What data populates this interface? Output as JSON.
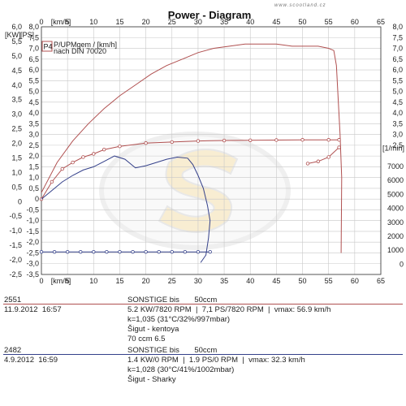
{
  "watermark": "www.scootland.cz",
  "title": "Power - Diagram",
  "axis": {
    "left_units": [
      "[KW]",
      "[PS]"
    ],
    "top_unit": "[km/h]",
    "bottom_unit": "[km/h]",
    "right_unit": "[1/min]",
    "kw_ticks": [
      "6,0",
      "5,5",
      "5,0",
      "4,5",
      "4,0",
      "3,5",
      "3,0",
      "2,5",
      "2,0",
      "1,5",
      "1,0",
      "0,5",
      "0",
      "-0,5",
      "-1,0",
      "-1,5",
      "-2,0",
      "-2,5"
    ],
    "ps_ticks": [
      "8,0",
      "7,5",
      "7,0",
      "6,5",
      "6,0",
      "5,5",
      "5,0",
      "4,5",
      "4,0",
      "3,5",
      "3,0",
      "2,5",
      "2,0",
      "1,5",
      "1,0",
      "0,5",
      "0",
      "-0,5",
      "-1,0",
      "-1,5",
      "-2,0",
      "-2,5",
      "-3,0",
      "-3,5"
    ],
    "right_ps_ticks": [
      "8,0",
      "7,5",
      "7,0",
      "6,5",
      "6,0",
      "5,5",
      "5,0",
      "4,5",
      "4,0",
      "3,5",
      "3,0",
      "2,5"
    ],
    "right_rpm_ticks": [
      "7000",
      "6000",
      "5000",
      "4000",
      "3000",
      "2000",
      "1000",
      "0"
    ],
    "kmh_ticks": [
      "0",
      "5",
      "10",
      "15",
      "20",
      "25",
      "30",
      "35",
      "40",
      "45",
      "50",
      "55",
      "60",
      "65"
    ]
  },
  "legend": {
    "badge": "P4",
    "line1": "P/UPMgem / [km/h]",
    "line2": "nach DIN 70020"
  },
  "runs": [
    {
      "id": "2551",
      "date": "11.9.2012  16:57",
      "color": "#b05050",
      "lines": [
        "SONSTIGE bis       50ccm",
        "5.2 KW/7820 RPM  |  7,1 PS/7820 RPM  |  vmax: 56.9 km/h",
        "k=1,035 (31°C/32%/997mbar)",
        "Šigut - kentoya",
        "70 ccm 6.5"
      ]
    },
    {
      "id": "2482",
      "date": "4.9.2012  16:59",
      "color": "#34408a",
      "lines": [
        "SONSTIGE bis       50ccm",
        "1.4 KW/0 RPM  |  1.9 PS/0 RPM  |  vmax: 32.3 km/h",
        "k=1,028 (30°C/41%/1002mbar)",
        "Šigut - Sharky"
      ]
    }
  ],
  "chart_data": {
    "type": "line",
    "title": "Power - Diagram",
    "xlabel": "[km/h]",
    "ylabel": "[KW] [PS]",
    "xlim": [
      0,
      65
    ],
    "ylim_ps": [
      -3.5,
      8.0
    ],
    "ylim_kw": [
      -2.5,
      6.0
    ],
    "rpm_axis": [
      0,
      7000
    ],
    "grid": true,
    "series": [
      {
        "name": "2551",
        "color": "#b05050",
        "kind": "power",
        "x": [
          0,
          3,
          6,
          9,
          12,
          15,
          18,
          21,
          24,
          27,
          30,
          33,
          36,
          39,
          42,
          45,
          48,
          51,
          53,
          55,
          56,
          56.5,
          57.2,
          57.5,
          57.4
        ],
        "y": [
          0.3,
          1.7,
          2.7,
          3.5,
          4.2,
          4.8,
          5.3,
          5.8,
          6.2,
          6.5,
          6.8,
          7.0,
          7.1,
          7.2,
          7.2,
          7.2,
          7.1,
          7.1,
          7.1,
          7.0,
          6.9,
          6.2,
          3.0,
          1.0,
          -2.5
        ]
      },
      {
        "name": "2551",
        "color": "#b05050",
        "kind": "rpm",
        "marker": "circle",
        "x": [
          0,
          2,
          4,
          6,
          8,
          10,
          12,
          15,
          20,
          25,
          30,
          35,
          40,
          45,
          50,
          55,
          57
        ],
        "y": [
          0,
          0.8,
          1.4,
          1.7,
          1.95,
          2.1,
          2.3,
          2.45,
          2.6,
          2.65,
          2.7,
          2.72,
          2.73,
          2.74,
          2.75,
          2.75,
          2.75
        ]
      },
      {
        "name": "2551",
        "color": "#b05050",
        "kind": "rpm-runout",
        "marker": "circle",
        "x": [
          51,
          53,
          55,
          57
        ],
        "y": [
          1.65,
          1.75,
          1.95,
          2.4
        ]
      },
      {
        "name": "2482",
        "color": "#34408a",
        "kind": "power",
        "x": [
          0,
          2,
          4,
          6,
          8,
          10,
          12,
          14,
          16,
          18,
          20,
          22,
          24,
          26,
          28,
          29,
          30,
          31,
          31.8,
          32.3,
          32.0,
          31.5,
          30.5
        ],
        "y": [
          0.0,
          0.4,
          0.8,
          1.1,
          1.35,
          1.5,
          1.75,
          2.0,
          1.85,
          1.45,
          1.55,
          1.7,
          1.85,
          1.95,
          1.9,
          1.6,
          1.1,
          0.5,
          -0.3,
          -1.0,
          -1.8,
          -2.6,
          -2.95
        ]
      },
      {
        "name": "2482",
        "color": "#34408a",
        "kind": "rpm",
        "marker": "circle",
        "x": [
          0,
          2.5,
          5,
          7.5,
          10,
          12.5,
          15,
          17.5,
          20,
          22.5,
          25,
          27.5,
          30,
          32.3
        ],
        "y": [
          -2.45,
          -2.45,
          -2.45,
          -2.45,
          -2.45,
          -2.45,
          -2.45,
          -2.45,
          -2.45,
          -2.45,
          -2.45,
          -2.45,
          -2.45,
          -2.45
        ]
      }
    ]
  }
}
